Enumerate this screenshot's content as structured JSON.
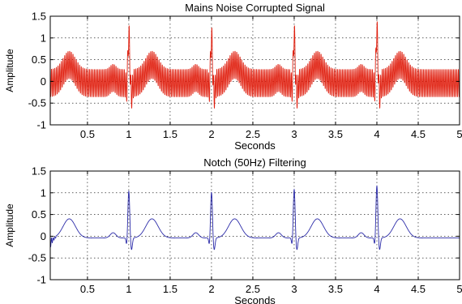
{
  "chart_data": [
    {
      "type": "line",
      "title": "Mains Noise Corrupted Signal",
      "xlabel": "Seconds",
      "ylabel": "Amplitude",
      "xlim": [
        0.05,
        5
      ],
      "ylim": [
        -1,
        1.5
      ],
      "xticks": [
        0.5,
        1,
        1.5,
        2,
        2.5,
        3,
        3.5,
        4,
        4.5,
        5
      ],
      "xtick_labels": [
        "0.5",
        "1",
        "1.5",
        "2",
        "2.5",
        "3",
        "3.5",
        "4",
        "4.5",
        "5"
      ],
      "yticks": [
        -1,
        -0.5,
        0,
        0.5,
        1,
        1.5
      ],
      "ytick_labels": [
        "-1",
        "-0.5",
        "0",
        "0.5",
        "1",
        "1.5"
      ],
      "grid": true,
      "series": [
        {
          "color": "#e02010",
          "sample_rate_hz": 1000,
          "noise_hz": 50,
          "noise_amplitude": 0.32,
          "beats": [
            {
              "r_peak_s": 0.0,
              "r_amplitude": 0.0
            },
            {
              "r_peak_s": 1.0,
              "r_amplitude": 1.1
            },
            {
              "r_peak_s": 2.0,
              "r_amplitude": 1.05
            },
            {
              "r_peak_s": 3.0,
              "r_amplitude": 1.1
            },
            {
              "r_peak_s": 4.0,
              "r_amplitude": 1.2
            }
          ],
          "t_wave_amplitude": 0.42,
          "p_wave_amplitude": 0.12
        }
      ]
    },
    {
      "type": "line",
      "title": "Notch (50Hz) Filtering",
      "xlabel": "Seconds",
      "ylabel": "Amplitude",
      "xlim": [
        0.05,
        5
      ],
      "ylim": [
        -1,
        1.5
      ],
      "xticks": [
        0.5,
        1,
        1.5,
        2,
        2.5,
        3,
        3.5,
        4,
        4.5,
        5
      ],
      "xtick_labels": [
        "0.5",
        "1",
        "1.5",
        "2",
        "2.5",
        "3",
        "3.5",
        "4",
        "4.5",
        "5"
      ],
      "yticks": [
        -1,
        -0.5,
        0,
        0.5,
        1,
        1.5
      ],
      "ytick_labels": [
        "-1",
        "-0.5",
        "0",
        "0.5",
        "1",
        "1.5"
      ],
      "grid": true,
      "series": [
        {
          "color": "#2a2aa8",
          "sample_rate_hz": 1000,
          "noise_hz": 50,
          "noise_amplitude": 0.0,
          "beats": [
            {
              "r_peak_s": 0.0,
              "r_amplitude": 0.0
            },
            {
              "r_peak_s": 1.0,
              "r_amplitude": 1.08
            },
            {
              "r_peak_s": 2.0,
              "r_amplitude": 1.05
            },
            {
              "r_peak_s": 3.0,
              "r_amplitude": 1.12
            },
            {
              "r_peak_s": 4.0,
              "r_amplitude": 1.2
            }
          ],
          "t_wave_amplitude": 0.44,
          "p_wave_amplitude": 0.12
        }
      ]
    }
  ]
}
